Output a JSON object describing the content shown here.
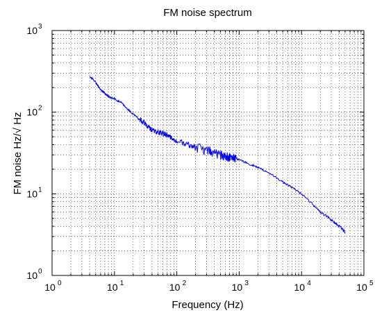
{
  "chart_data": {
    "type": "line",
    "title": "FM noise spectrum",
    "xlabel": "Frequency (Hz)",
    "ylabel": "FM noise Hz/√ Hz",
    "x_scale": "log",
    "y_scale": "log",
    "xlim": [
      1,
      100000
    ],
    "ylim": [
      1,
      1000
    ],
    "grid": "major and minor, dotted",
    "x_ticks": [
      {
        "base": "10",
        "exp": "0",
        "value": 1
      },
      {
        "base": "10",
        "exp": "1",
        "value": 10
      },
      {
        "base": "10",
        "exp": "2",
        "value": 100
      },
      {
        "base": "10",
        "exp": "3",
        "value": 1000
      },
      {
        "base": "10",
        "exp": "4",
        "value": 10000
      },
      {
        "base": "10",
        "exp": "5",
        "value": 100000
      }
    ],
    "y_ticks": [
      {
        "base": "10",
        "exp": "0",
        "value": 1
      },
      {
        "base": "10",
        "exp": "1",
        "value": 10
      },
      {
        "base": "10",
        "exp": "2",
        "value": 100
      },
      {
        "base": "10",
        "exp": "3",
        "value": 1000
      }
    ],
    "series": [
      {
        "color": "#0000ff",
        "x": [
          4,
          5,
          6,
          7,
          8,
          10,
          13,
          16,
          20,
          25,
          30,
          35,
          40,
          50,
          60,
          70,
          80,
          100,
          150,
          200,
          300,
          400,
          500,
          600,
          700,
          800,
          1000,
          1500,
          2000,
          3000,
          5000,
          7000,
          10000,
          15000,
          20000,
          30000,
          40000,
          50000
        ],
        "y": [
          280,
          230,
          190,
          170,
          155,
          145,
          130,
          110,
          95,
          82,
          75,
          65,
          60,
          57,
          55,
          52,
          48,
          44,
          40,
          37,
          34,
          32,
          30,
          29,
          28,
          28,
          26,
          23,
          21,
          18,
          14,
          12,
          10,
          7.5,
          6,
          4.8,
          4,
          3.4
        ]
      }
    ]
  }
}
